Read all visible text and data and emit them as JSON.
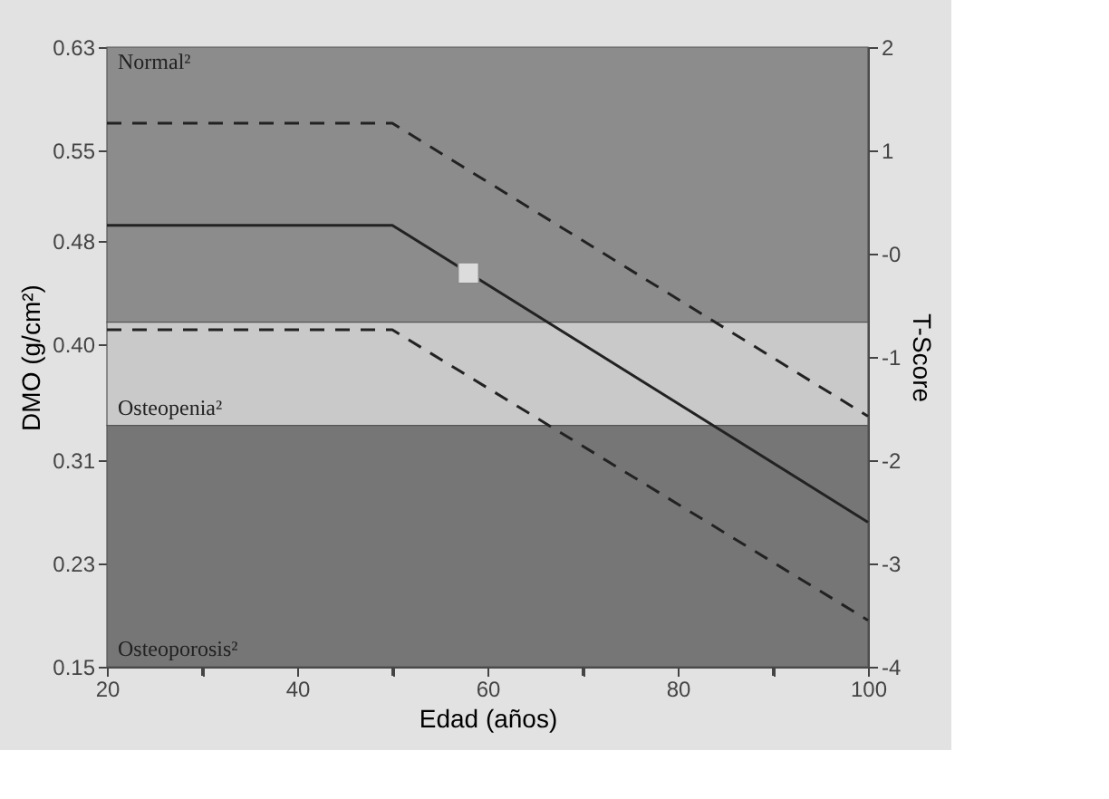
{
  "chart_data": {
    "type": "line",
    "xlabel": "Edad (años)",
    "ylabel": "DMO (g/cm²)",
    "y2label": "T-Score",
    "xlim": [
      20,
      100
    ],
    "xticks": [
      20,
      {
        "value": 30,
        "label": null
      },
      40,
      {
        "value": 50,
        "label": null
      },
      60,
      {
        "value": 70,
        "label": null
      },
      80,
      {
        "value": 90,
        "label": null
      },
      100
    ],
    "ylim": [
      0.15,
      0.63
    ],
    "yticks": [
      0.15,
      0.23,
      0.31,
      {
        "value": 0.4,
        "label": "0.40"
      },
      0.48,
      0.55,
      0.63
    ],
    "y2lim": [
      -4,
      2
    ],
    "y2ticks": [
      -4,
      -3,
      -2,
      -1,
      {
        "value": 0,
        "label": "-0"
      },
      1,
      2
    ],
    "grid": false,
    "legend": false,
    "bands": [
      {
        "axis": "y",
        "from": 0.417,
        "to": 0.63,
        "label": "Normal²",
        "color": "#8c8c8c"
      },
      {
        "axis": "y",
        "from": 0.337,
        "to": 0.417,
        "label": "Osteopenia²",
        "color": "#c9c9c9"
      },
      {
        "axis": "y",
        "from": 0.15,
        "to": 0.337,
        "label": "Osteoporosis²",
        "color": "#767676"
      }
    ],
    "series": [
      {
        "color": "#222222",
        "line_style": "dashed",
        "x": [
          20,
          50,
          100
        ],
        "values": [
          0.571,
          0.571,
          0.344
        ]
      },
      {
        "color": "#222222",
        "line_style": "solid",
        "x": [
          20,
          50,
          100
        ],
        "values": [
          0.492,
          0.492,
          0.262
        ]
      },
      {
        "color": "#222222",
        "line_style": "dashed",
        "x": [
          20,
          50,
          100
        ],
        "values": [
          0.411,
          0.411,
          0.186
        ]
      },
      {
        "type": "scatter",
        "color": "#dcdcdc",
        "marker": "square",
        "x": [
          58
        ],
        "values": [
          0.455
        ]
      }
    ]
  }
}
